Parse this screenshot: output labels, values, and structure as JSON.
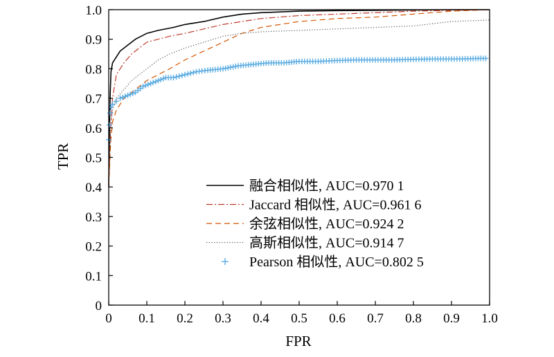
{
  "chart_data": {
    "type": "line",
    "xlabel": "FPR",
    "ylabel": "TPR",
    "xlim": [
      0,
      1.0
    ],
    "ylim": [
      0,
      1.0
    ],
    "x_ticks": [
      "0",
      "0.1",
      "0.2",
      "0.3",
      "0.4",
      "0.5",
      "0.6",
      "0.7",
      "0.8",
      "0.9",
      "1.0"
    ],
    "y_ticks": [
      "0",
      "0.1",
      "0.2",
      "0.3",
      "0.4",
      "0.5",
      "0.6",
      "0.7",
      "0.8",
      "0.9",
      "1.0"
    ],
    "grid": false,
    "legend_position": "lower-right",
    "series": [
      {
        "name": "融合相似性, AUC=0.970 1",
        "color": "#000000",
        "style": "solid",
        "points": [
          [
            0,
            0.4
          ],
          [
            0.002,
            0.6
          ],
          [
            0.004,
            0.72
          ],
          [
            0.006,
            0.79
          ],
          [
            0.01,
            0.82
          ],
          [
            0.02,
            0.84
          ],
          [
            0.03,
            0.86
          ],
          [
            0.05,
            0.88
          ],
          [
            0.07,
            0.9
          ],
          [
            0.1,
            0.92
          ],
          [
            0.13,
            0.93
          ],
          [
            0.17,
            0.94
          ],
          [
            0.2,
            0.95
          ],
          [
            0.25,
            0.96
          ],
          [
            0.3,
            0.975
          ],
          [
            0.35,
            0.985
          ],
          [
            0.4,
            0.99
          ],
          [
            0.5,
            0.995
          ],
          [
            0.6,
            0.997
          ],
          [
            0.7,
            0.998
          ],
          [
            0.8,
            0.999
          ],
          [
            0.9,
            1.0
          ],
          [
            1.0,
            1.0
          ]
        ]
      },
      {
        "name": "Jaccard 相似性, AUC=0.961 6",
        "color": "#c0392b",
        "style": "dashdot",
        "points": [
          [
            0,
            0.4
          ],
          [
            0.005,
            0.6
          ],
          [
            0.01,
            0.7
          ],
          [
            0.02,
            0.78
          ],
          [
            0.04,
            0.82
          ],
          [
            0.06,
            0.85
          ],
          [
            0.08,
            0.87
          ],
          [
            0.1,
            0.89
          ],
          [
            0.13,
            0.9
          ],
          [
            0.16,
            0.91
          ],
          [
            0.2,
            0.92
          ],
          [
            0.25,
            0.935
          ],
          [
            0.3,
            0.95
          ],
          [
            0.35,
            0.96
          ],
          [
            0.4,
            0.97
          ],
          [
            0.5,
            0.98
          ],
          [
            0.6,
            0.985
          ],
          [
            0.7,
            0.99
          ],
          [
            0.8,
            0.995
          ],
          [
            0.9,
            0.998
          ],
          [
            1.0,
            1.0
          ]
        ]
      },
      {
        "name": "余弦相似性, AUC=0.924 2",
        "color": "#d35400",
        "style": "dashed",
        "points": [
          [
            0,
            0.4
          ],
          [
            0.005,
            0.55
          ],
          [
            0.01,
            0.62
          ],
          [
            0.02,
            0.66
          ],
          [
            0.04,
            0.7
          ],
          [
            0.06,
            0.72
          ],
          [
            0.08,
            0.74
          ],
          [
            0.1,
            0.76
          ],
          [
            0.13,
            0.78
          ],
          [
            0.16,
            0.8
          ],
          [
            0.2,
            0.83
          ],
          [
            0.25,
            0.86
          ],
          [
            0.3,
            0.89
          ],
          [
            0.35,
            0.92
          ],
          [
            0.4,
            0.94
          ],
          [
            0.45,
            0.95
          ],
          [
            0.5,
            0.96
          ],
          [
            0.6,
            0.97
          ],
          [
            0.7,
            0.975
          ],
          [
            0.8,
            0.985
          ],
          [
            0.9,
            0.995
          ],
          [
            1.0,
            1.0
          ]
        ]
      },
      {
        "name": "高斯相似性, AUC=0.914 7",
        "color": "#555555",
        "style": "dotted",
        "points": [
          [
            0,
            0.4
          ],
          [
            0.005,
            0.6
          ],
          [
            0.01,
            0.66
          ],
          [
            0.02,
            0.7
          ],
          [
            0.04,
            0.73
          ],
          [
            0.06,
            0.76
          ],
          [
            0.08,
            0.78
          ],
          [
            0.1,
            0.8
          ],
          [
            0.13,
            0.83
          ],
          [
            0.16,
            0.85
          ],
          [
            0.2,
            0.87
          ],
          [
            0.25,
            0.89
          ],
          [
            0.3,
            0.91
          ],
          [
            0.35,
            0.92
          ],
          [
            0.4,
            0.925
          ],
          [
            0.5,
            0.93
          ],
          [
            0.6,
            0.935
          ],
          [
            0.7,
            0.94
          ],
          [
            0.8,
            0.945
          ],
          [
            0.9,
            0.96
          ],
          [
            1.0,
            0.965
          ]
        ]
      },
      {
        "name": "Pearson 相似性, AUC=0.802 5",
        "color": "#5dade2",
        "style": "plus",
        "points": [
          [
            0,
            0.56
          ],
          [
            0.002,
            0.61
          ],
          [
            0.004,
            0.65
          ],
          [
            0.006,
            0.67
          ],
          [
            0.01,
            0.68
          ],
          [
            0.02,
            0.69
          ],
          [
            0.03,
            0.7
          ],
          [
            0.05,
            0.71
          ],
          [
            0.07,
            0.72
          ],
          [
            0.09,
            0.74
          ],
          [
            0.11,
            0.75
          ],
          [
            0.13,
            0.76
          ],
          [
            0.15,
            0.77
          ],
          [
            0.17,
            0.77
          ],
          [
            0.2,
            0.78
          ],
          [
            0.23,
            0.79
          ],
          [
            0.26,
            0.795
          ],
          [
            0.3,
            0.8
          ],
          [
            0.34,
            0.81
          ],
          [
            0.38,
            0.815
          ],
          [
            0.42,
            0.82
          ],
          [
            0.46,
            0.82
          ],
          [
            0.5,
            0.825
          ],
          [
            0.55,
            0.825
          ],
          [
            0.6,
            0.828
          ],
          [
            0.65,
            0.83
          ],
          [
            0.7,
            0.83
          ],
          [
            0.75,
            0.83
          ],
          [
            0.8,
            0.832
          ],
          [
            0.85,
            0.833
          ],
          [
            0.9,
            0.833
          ],
          [
            0.95,
            0.834
          ],
          [
            0.97,
            0.835
          ],
          [
            0.99,
            0.835
          ]
        ]
      }
    ]
  }
}
